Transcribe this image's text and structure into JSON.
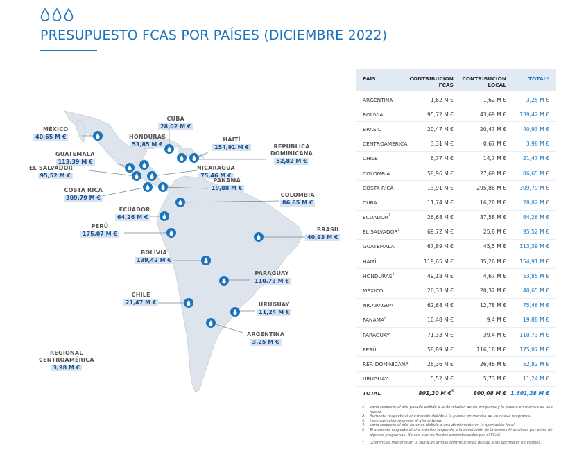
{
  "header": {
    "title": "PRESUPUESTO FCAS POR PAÍSES (DICIEMBRE 2022)"
  },
  "map_labels": [
    {
      "name": "MÉXICO",
      "value": "40,65 M €"
    },
    {
      "name": "CUBA",
      "value": "28,02 M €"
    },
    {
      "name": "HONDURAS",
      "value": "53,85 M €"
    },
    {
      "name": "HAITÍ",
      "value": "154,91 M €"
    },
    {
      "name": "REPÚBLICA\nDOMINICANA",
      "value": "52,82 M €"
    },
    {
      "name": "GUATEMALA",
      "value": "113,39 M €"
    },
    {
      "name": "EL SALVADOR",
      "value": "95,52 M €"
    },
    {
      "name": "NICARAGUA",
      "value": "75,46 M €"
    },
    {
      "name": "PANAMÁ",
      "value": "19,88 M €"
    },
    {
      "name": "COSTA RICA",
      "value": "309,79 M €"
    },
    {
      "name": "COLOMBIA",
      "value": "86,65 M €"
    },
    {
      "name": "ECUADOR",
      "value": "64,26 M €"
    },
    {
      "name": "PERÚ",
      "value": "175,07 M €"
    },
    {
      "name": "BRASIL",
      "value": "40,93 M €"
    },
    {
      "name": "BOLIVIA",
      "value": "139,42 M €"
    },
    {
      "name": "PARAGUAY",
      "value": "110,73 M €"
    },
    {
      "name": "CHILE",
      "value": "21,47 M €"
    },
    {
      "name": "URUGUAY",
      "value": "11,24 M €"
    },
    {
      "name": "ARGENTINA",
      "value": "3,25 M €"
    },
    {
      "name": "REGIONAL\nCENTROAMÉRICA",
      "value": "3,98 M €"
    }
  ],
  "table": {
    "headers": [
      "PAÍS",
      "CONTRIBUCIÓN\nFCAS",
      "CONTRIBUCIÓN\nLOCAL",
      "TOTAL*"
    ],
    "rows": [
      {
        "pais": "ARGENTINA",
        "sup": "",
        "fcas": "1,62 M €",
        "local": "1,62 M €",
        "total": "3,25 M €"
      },
      {
        "pais": "BOLIVIA",
        "sup": "",
        "fcas": "95,72 M €",
        "local": "43,69 M €",
        "total": "139,42 M €"
      },
      {
        "pais": "BRASIL",
        "sup": "",
        "fcas": "20,47 M €",
        "local": "20,47 M €",
        "total": "40,93 M €"
      },
      {
        "pais": "CENTROAMÉRICA",
        "sup": "",
        "fcas": "3,31 M €",
        "local": "0,67 M €",
        "total": "3,98 M €"
      },
      {
        "pais": "CHILE",
        "sup": "",
        "fcas": "6,77 M €",
        "local": "14,7 M €",
        "total": "21,47 M €"
      },
      {
        "pais": "COLOMBIA",
        "sup": "",
        "fcas": "58,96 M €",
        "local": "27,69 M €",
        "total": "86,65 M €"
      },
      {
        "pais": "COSTA RICA",
        "sup": "",
        "fcas": "13,91 M €",
        "local": "295,88 M €",
        "total": "309,79 M €"
      },
      {
        "pais": "CUBA",
        "sup": "",
        "fcas": "11,74 M €",
        "local": "16,28 M €",
        "total": "28,02 M €"
      },
      {
        "pais": "ECUADOR",
        "sup": "1",
        "fcas": "26,68 M €",
        "local": "37,58 M €",
        "total": "64,26 M €"
      },
      {
        "pais": "EL SALVADOR",
        "sup": "2",
        "fcas": "69,72 M €",
        "local": "25,8 M €",
        "total": "95,52 M €"
      },
      {
        "pais": "GUATEMALA",
        "sup": "",
        "fcas": "67,89 M €",
        "local": "45,5 M €",
        "total": "113,39 M €"
      },
      {
        "pais": "HAITÍ",
        "sup": "",
        "fcas": "119,65 M €",
        "local": "35,26 M €",
        "total": "154,91 M €"
      },
      {
        "pais": "HONDURAS",
        "sup": "3",
        "fcas": "49,18 M €",
        "local": "4,67 M €",
        "total": "53,85 M €"
      },
      {
        "pais": "MÉXICO",
        "sup": "",
        "fcas": "20,33 M €",
        "local": "20,32 M €",
        "total": "40,65 M €"
      },
      {
        "pais": "NICARAGUA",
        "sup": "",
        "fcas": "62,68 M €",
        "local": "12,78 M €",
        "total": "75,46 M €"
      },
      {
        "pais": "PANAMÁ",
        "sup": "4",
        "fcas": "10,48 M €",
        "local": "9,4 M €",
        "total": "19,88 M €"
      },
      {
        "pais": "PARAGUAY",
        "sup": "",
        "fcas": "71,33 M €",
        "local": "39,4 M €",
        "total": "110,73 M €"
      },
      {
        "pais": "PERÚ",
        "sup": "",
        "fcas": "58,89 M €",
        "local": "116,18 M €",
        "total": "175,07 M €"
      },
      {
        "pais": "REP. DOMINICANA",
        "sup": "",
        "fcas": "26,36 M €",
        "local": "26,46 M €",
        "total": "52,82 M €"
      },
      {
        "pais": "URUGUAY",
        "sup": "",
        "fcas": "5,52 M €",
        "local": "5,73 M €",
        "total": "11,24 M €"
      }
    ],
    "total_row": {
      "pais": "TOTAL",
      "fcas": "801,20 M €",
      "fcas_sup": "5",
      "local": "800,08 M €",
      "total": "1.601,28 M €"
    }
  },
  "notes": [
    {
      "k": "1.",
      "t": "Varía respecto al año pasado debido a la devolución de un programa y la puesta en marcha de uno nuevo."
    },
    {
      "k": "2.",
      "t": "Aumenta respecto al año pasado debido a la puesta en marcha de un nuevo programa."
    },
    {
      "k": "3.",
      "t": "Leve variación respecto al año anterior."
    },
    {
      "k": "4.",
      "t": "Varía respecto al año anterior, debido a una disminución en la aportación local."
    },
    {
      "k": "5.",
      "t": "El aumento respecto al año anterior responde a la devolución de intereses financieros por parte de algunos programas. No son nuevos fondos desembolsados por el FCAS."
    },
    {
      "k": "*",
      "t": "Diferencias menores en la suma de ambas contribuciones debido a los decimales no visibles."
    }
  ],
  "colors": {
    "accent": "#1c74bc",
    "map_land": "#dde4ec",
    "value_bg": "#d7e3f0"
  },
  "icons": {
    "marker": "water-drop-icon",
    "logo": "three-drops-icon"
  }
}
